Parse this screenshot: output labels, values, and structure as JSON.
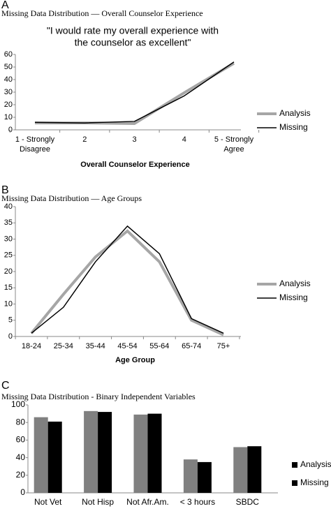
{
  "chart_data": [
    {
      "panel": "A",
      "heading": "Missing Data Distribution — Overall Counselor Experience",
      "type": "line",
      "title": [
        "\"I would rate my overall experience with",
        "the counselor as excellent\""
      ],
      "xlabel": "Overall Counselor Experience",
      "categories": [
        [
          "1 - Strongly",
          "Disagree"
        ],
        [
          "2"
        ],
        [
          "3"
        ],
        [
          "4"
        ],
        [
          "5 - Strongly",
          "Agree"
        ]
      ],
      "series": [
        {
          "name": "Analysis",
          "color": "#a6a6a6",
          "values": [
            5.5,
            5.5,
            5,
            29.5,
            53
          ]
        },
        {
          "name": "Missing",
          "color": "#000000",
          "values": [
            6,
            5.5,
            6.7,
            27,
            54
          ]
        }
      ],
      "ylim": [
        0,
        60
      ],
      "yticks": [
        0,
        10,
        20,
        30,
        40,
        50,
        60
      ],
      "legend": "right"
    },
    {
      "panel": "B",
      "heading": "Missing Data Distribution — Age Groups",
      "type": "line",
      "xlabel": "Age Group",
      "categories": [
        [
          "18-24"
        ],
        [
          "25-34"
        ],
        [
          "35-44"
        ],
        [
          "45-54"
        ],
        [
          "55-64"
        ],
        [
          "65-74"
        ],
        [
          "75+"
        ]
      ],
      "series": [
        {
          "name": "Analysis",
          "color": "#a6a6a6",
          "values": [
            1,
            13,
            24.5,
            32.5,
            23,
            5,
            0.5
          ]
        },
        {
          "name": "Missing",
          "color": "#000000",
          "values": [
            1,
            9,
            23,
            34,
            25.5,
            5.5,
            1
          ]
        }
      ],
      "ylim": [
        0,
        40
      ],
      "yticks": [
        0,
        5,
        10,
        15,
        20,
        25,
        30,
        35,
        40
      ],
      "legend": "right"
    },
    {
      "panel": "C",
      "heading": "Missing Data Distribution - Binary Independent Variables",
      "type": "bar",
      "categories": [
        [
          "Not Vet"
        ],
        [
          "Not Hisp"
        ],
        [
          "Not Afr.Am."
        ],
        [
          "< 3 hours"
        ],
        [
          "SBDC"
        ]
      ],
      "series": [
        {
          "name": "Analysis",
          "color": "#808080",
          "values": [
            86,
            93,
            89,
            38,
            52
          ]
        },
        {
          "name": "Missing",
          "color": "#000000",
          "values": [
            81,
            92,
            90,
            35,
            53
          ]
        }
      ],
      "ylim": [
        0,
        100
      ],
      "yticks": [
        0,
        20,
        40,
        60,
        80,
        100
      ],
      "legend": "right"
    }
  ]
}
